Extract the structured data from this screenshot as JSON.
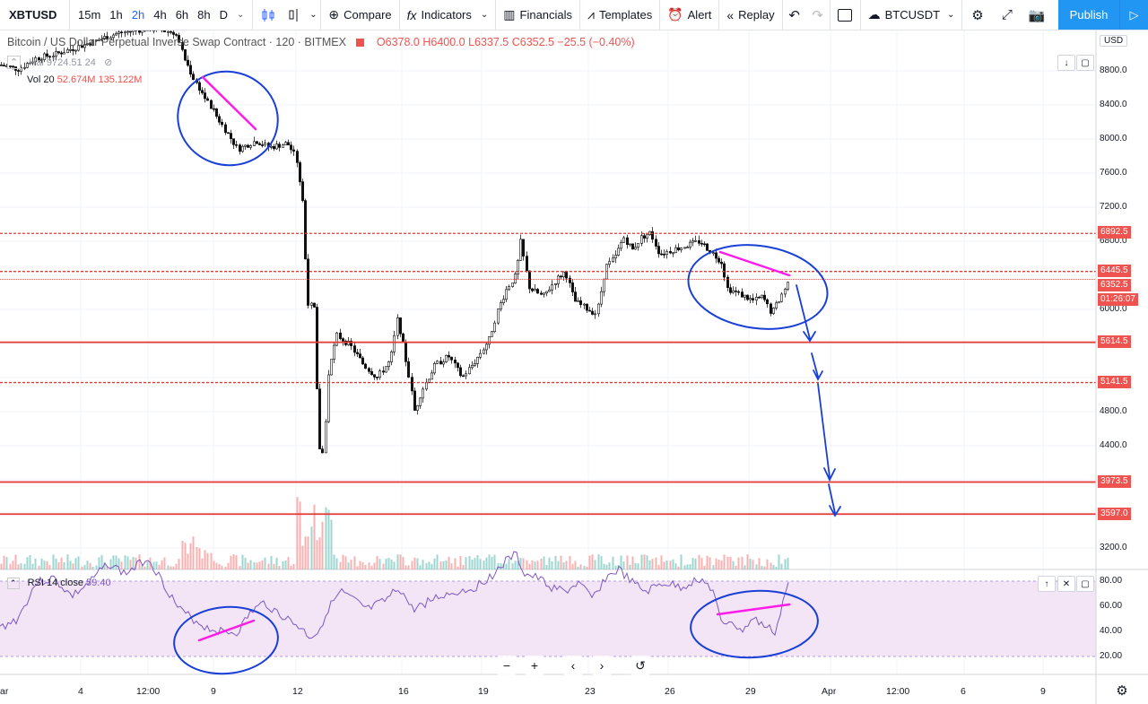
{
  "toolbar": {
    "symbol": "XBTUSD",
    "intervals": [
      "15m",
      "1h",
      "2h",
      "4h",
      "6h",
      "8h",
      "D"
    ],
    "active_interval": "2h",
    "compare": "Compare",
    "indicators": "Indicators",
    "financials": "Financials",
    "templates": "Templates",
    "alert": "Alert",
    "replay": "Replay",
    "compare_symbol": "BTCUSDT",
    "publish": "Publish"
  },
  "legend": {
    "title": "Bitcoin / US Dollar Perpetual Inverse Swap Contract · 120 · BITMEX",
    "ohlc": "O6378.0  H6400.0  L6337.5  C6352.5  −25.5 (−0.40%)",
    "hal": "Hal  9724.51  24",
    "vol_label": "Vol 20",
    "vol_values": "52.674M  135.122M"
  },
  "rsi": {
    "label": "RSI 14 close",
    "value": "59.40",
    "axis": [
      "80.00",
      "60.00",
      "40.00",
      "20.00"
    ]
  },
  "price_axis": {
    "currency": "USD",
    "ticks": [
      "8800.0",
      "8400.0",
      "8000.0",
      "7600.0",
      "7200.0",
      "6800.0",
      "6000.0",
      "4800.0",
      "4400.0",
      "3200.0"
    ],
    "tags": [
      {
        "label": "6892.5",
        "color": "#ef5350"
      },
      {
        "label": "6445.5",
        "color": "#ef5350"
      },
      {
        "label": "6352.5",
        "color": "#ef5350"
      },
      {
        "label": "01:26:07",
        "color": "#ef5350"
      },
      {
        "label": "5614.5",
        "color": "#ef5350"
      },
      {
        "label": "5141.5",
        "color": "#ef5350"
      },
      {
        "label": "3973.5",
        "color": "#ef5350"
      },
      {
        "label": "3597.0",
        "color": "#ef5350"
      }
    ]
  },
  "time_axis": [
    "ar",
    "4",
    "12:00",
    "9",
    "12",
    "16",
    "19",
    "23",
    "26",
    "29",
    "Apr",
    "12:00",
    "6",
    "9"
  ],
  "colors": {
    "accent": "#2196f3",
    "level_line": "#e53935",
    "drawing_blue": "#1a3fd6",
    "drawing_magenta": "#ff1ce8",
    "rsi_line": "#7e57c2",
    "rsi_band": "#f3e5f5"
  }
}
